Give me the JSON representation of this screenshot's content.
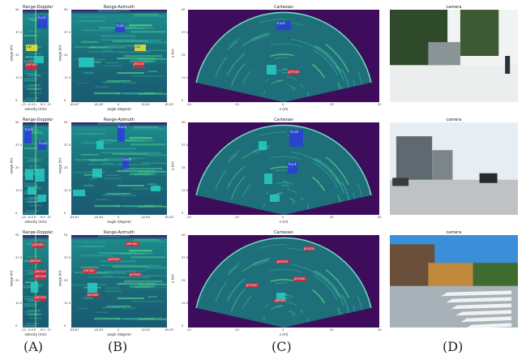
{
  "columns": {
    "A": {
      "title": "Range-Doppler",
      "xlabel": "velocity (m/s)",
      "ylabel": "range (m)",
      "xticks": [
        "-13",
        "-6.5",
        "0",
        "6.5",
        "13"
      ],
      "yticks": [
        "50",
        "37.5",
        "25",
        "12.5",
        "0"
      ]
    },
    "B": {
      "title": "Range-Azimuth",
      "xlabel": "angle (degree)",
      "ylabel": "range (m)",
      "xticks": [
        "-85.67",
        "-42.83",
        "0",
        "42.83",
        "85.67"
      ],
      "yticks": [
        "50",
        "37.5",
        "25",
        "12.5",
        "0"
      ]
    },
    "C": {
      "title": "Cartesian",
      "xlabel": "x (m)",
      "ylabel": "z (m)",
      "xticks": [
        "-50",
        "-25",
        "0",
        "25",
        "50"
      ],
      "yticks": [
        "50",
        "37.5",
        "25",
        "12.5",
        "0"
      ]
    },
    "D": {
      "title": "camera"
    }
  },
  "captions": [
    "(A)",
    "(B)",
    "(C)",
    "(D)"
  ],
  "rows": [
    {
      "A": [
        {
          "label": "truck",
          "c": "blue"
        },
        {
          "label": "car",
          "c": "yellow"
        },
        {
          "label": "person",
          "c": "red"
        },
        {
          "label": "",
          "c": "cyan"
        }
      ],
      "B": [
        {
          "label": "truck",
          "c": "blue"
        },
        {
          "label": "car",
          "c": "yellow"
        },
        {
          "label": "person",
          "c": "red"
        },
        {
          "label": "",
          "c": "cyan"
        }
      ],
      "C": [
        {
          "label": "truck",
          "c": "blue"
        },
        {
          "label": "person",
          "c": "red"
        },
        {
          "label": "",
          "c": "cyan"
        }
      ]
    },
    {
      "A": [
        {
          "label": "truck",
          "c": "blue"
        },
        {
          "label": "truck",
          "c": "blue"
        },
        {
          "label": "",
          "c": "cyan"
        },
        {
          "label": "",
          "c": "cyan"
        },
        {
          "label": "",
          "c": "cyan"
        },
        {
          "label": "",
          "c": "cyan"
        }
      ],
      "B": [
        {
          "label": "truck",
          "c": "blue"
        },
        {
          "label": "truck",
          "c": "blue"
        },
        {
          "label": "",
          "c": "cyan"
        },
        {
          "label": "",
          "c": "cyan"
        },
        {
          "label": "",
          "c": "cyan"
        },
        {
          "label": "",
          "c": "cyan"
        }
      ],
      "C": [
        {
          "label": "truck",
          "c": "blue"
        },
        {
          "label": "truck",
          "c": "blue"
        },
        {
          "label": "",
          "c": "cyan"
        },
        {
          "label": "",
          "c": "cyan"
        },
        {
          "label": "",
          "c": "cyan"
        }
      ]
    },
    {
      "A": [
        {
          "label": "person",
          "c": "red"
        },
        {
          "label": "person",
          "c": "red"
        },
        {
          "label": "person",
          "c": "red"
        },
        {
          "label": "person",
          "c": "red"
        },
        {
          "label": "person",
          "c": "red"
        },
        {
          "label": "",
          "c": "cyan"
        }
      ],
      "B": [
        {
          "label": "person",
          "c": "red"
        },
        {
          "label": "person",
          "c": "red"
        },
        {
          "label": "person",
          "c": "red"
        },
        {
          "label": "person",
          "c": "red"
        },
        {
          "label": "person",
          "c": "red"
        },
        {
          "label": "",
          "c": "cyan"
        }
      ],
      "C": [
        {
          "label": "person",
          "c": "red"
        },
        {
          "label": "person",
          "c": "red"
        },
        {
          "label": "person",
          "c": "red"
        },
        {
          "label": "person",
          "c": "red"
        },
        {
          "label": "person",
          "c": "red"
        },
        {
          "label": "",
          "c": "cyan"
        }
      ]
    }
  ],
  "colors": {
    "blue": "#2a3fd8",
    "yellow": "#e8e23a",
    "red": "#d9263a",
    "cyan": "#27c9c2",
    "bg_dark": "#2b0f54",
    "bg_teal": "#1f6f7a"
  }
}
